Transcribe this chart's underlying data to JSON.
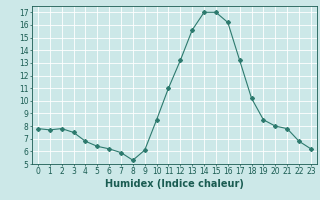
{
  "x": [
    0,
    1,
    2,
    3,
    4,
    5,
    6,
    7,
    8,
    9,
    10,
    11,
    12,
    13,
    14,
    15,
    16,
    17,
    18,
    19,
    20,
    21,
    22,
    23
  ],
  "y": [
    7.8,
    7.7,
    7.8,
    7.5,
    6.8,
    6.4,
    6.2,
    5.9,
    5.3,
    6.1,
    8.5,
    11.0,
    13.2,
    15.6,
    17.0,
    17.0,
    16.2,
    13.2,
    10.2,
    8.5,
    8.0,
    7.8,
    6.8,
    6.2
  ],
  "line_color": "#2d7a6e",
  "marker": "D",
  "marker_size": 2,
  "bg_color": "#cce8e8",
  "grid_color": "#ffffff",
  "xlabel": "Humidex (Indice chaleur)",
  "ylim": [
    5,
    17.5
  ],
  "xlim": [
    -0.5,
    23.5
  ],
  "yticks": [
    5,
    6,
    7,
    8,
    9,
    10,
    11,
    12,
    13,
    14,
    15,
    16,
    17
  ],
  "xticks": [
    0,
    1,
    2,
    3,
    4,
    5,
    6,
    7,
    8,
    9,
    10,
    11,
    12,
    13,
    14,
    15,
    16,
    17,
    18,
    19,
    20,
    21,
    22,
    23
  ],
  "tick_label_fontsize": 5.5,
  "xlabel_fontsize": 7,
  "label_color": "#1a5c52"
}
